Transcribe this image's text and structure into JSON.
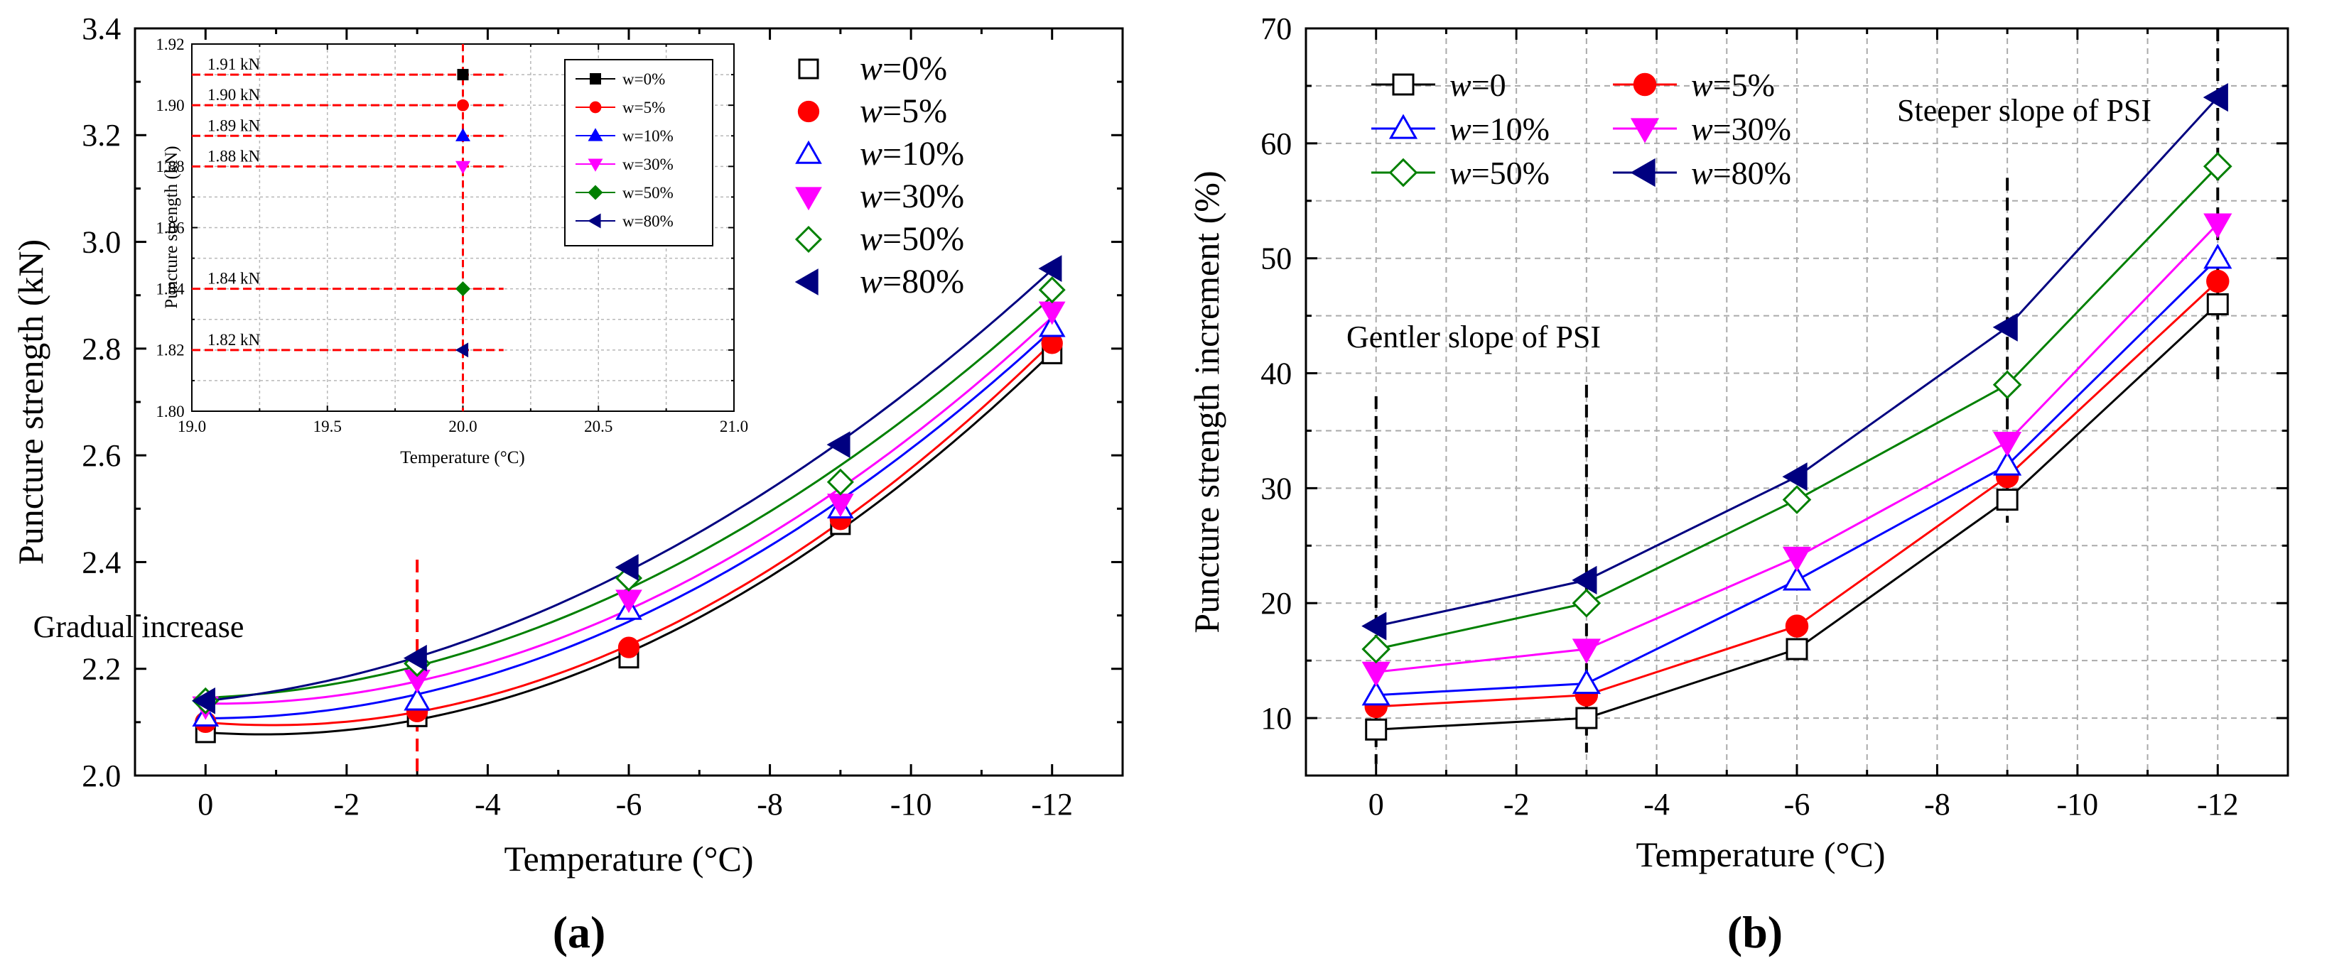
{
  "colors": {
    "w0": "#000000",
    "w5": "#ff0000",
    "w10": "#0000ff",
    "w30": "#ff00ff",
    "w50": "#008000",
    "w80": "#000080",
    "guide_a": "#ff0000",
    "guide_b": "#000000"
  },
  "chart_data": [
    {
      "id": "a",
      "type": "scatter",
      "panel_label_prefix": "(",
      "panel_letter": "a",
      "panel_label_suffix": ")",
      "xlabel": "Temperature (°C)",
      "ylabel": "Puncture strength (kN)",
      "x": [
        0,
        -3,
        -6,
        -9,
        -12
      ],
      "xlim": [
        1,
        -13
      ],
      "ylim": [
        2.0,
        3.4
      ],
      "xticks": [
        0,
        -2,
        -4,
        -6,
        -8,
        -10,
        -12
      ],
      "xtick_labels": [
        "0",
        "-2",
        "-4",
        "-6",
        "-8",
        "-10",
        "-12"
      ],
      "yticks": [
        2.0,
        2.2,
        2.4,
        2.6,
        2.8,
        3.0,
        3.2,
        3.4
      ],
      "ytick_labels": [
        "2.0",
        "2.2",
        "2.4",
        "2.6",
        "2.8",
        "3.0",
        "3.2",
        "3.4"
      ],
      "grid": false,
      "fit": "quadratic",
      "annotation": "Gradual increase",
      "guide_x": -3,
      "series": [
        {
          "key": "w0",
          "prefix": "w",
          "suffix": "=0%",
          "marker": "square-open",
          "values": [
            2.08,
            2.11,
            2.22,
            2.47,
            2.79
          ]
        },
        {
          "key": "w5",
          "prefix": "w",
          "suffix": "=5%",
          "marker": "circle-filled",
          "values": [
            2.1,
            2.12,
            2.24,
            2.48,
            2.81
          ]
        },
        {
          "key": "w10",
          "prefix": "w",
          "suffix": "=10%",
          "marker": "tri-up-open",
          "values": [
            2.11,
            2.14,
            2.31,
            2.5,
            2.84
          ]
        },
        {
          "key": "w30",
          "prefix": "w",
          "suffix": "=30%",
          "marker": "tri-down-filled",
          "values": [
            2.13,
            2.18,
            2.33,
            2.51,
            2.87
          ]
        },
        {
          "key": "w50",
          "prefix": "w",
          "suffix": "=50%",
          "marker": "diamond-open",
          "values": [
            2.14,
            2.21,
            2.37,
            2.55,
            2.91
          ]
        },
        {
          "key": "w80",
          "prefix": "w",
          "suffix": "=80%",
          "marker": "tri-left-filled",
          "values": [
            2.14,
            2.22,
            2.39,
            2.62,
            2.95
          ]
        }
      ],
      "legend_position": "top-right"
    },
    {
      "id": "a_inset",
      "type": "scatter",
      "xlabel": "Temperature (°C)",
      "ylabel": "Puncture strength (kN)",
      "xlim": [
        19.0,
        21.0
      ],
      "ylim": [
        1.8,
        1.92
      ],
      "xticks": [
        19.0,
        19.5,
        20.0,
        20.5,
        21.0
      ],
      "xtick_labels": [
        "19.0",
        "19.5",
        "20.0",
        "20.5",
        "21.0"
      ],
      "yticks": [
        1.8,
        1.82,
        1.84,
        1.86,
        1.88,
        1.9,
        1.92
      ],
      "ytick_labels": [
        "1.80",
        "1.82",
        "1.84",
        "1.86",
        "1.88",
        "1.90",
        "1.92"
      ],
      "grid": true,
      "guide_x": 20.0,
      "series": [
        {
          "key": "w0",
          "label": "w=0%",
          "marker": "square-filled",
          "x": 20.0,
          "y": 1.91,
          "value_label": "1.91 kN"
        },
        {
          "key": "w5",
          "label": "w=5%",
          "marker": "circle-filled",
          "x": 20.0,
          "y": 1.9,
          "value_label": "1.90 kN"
        },
        {
          "key": "w10",
          "label": "w=10%",
          "marker": "tri-up-filled",
          "x": 20.0,
          "y": 1.89,
          "value_label": "1.89 kN"
        },
        {
          "key": "w30",
          "label": "w=30%",
          "marker": "tri-down-filled",
          "x": 20.0,
          "y": 1.88,
          "value_label": "1.88 kN"
        },
        {
          "key": "w50",
          "label": "w=50%",
          "marker": "diamond-filled",
          "x": 20.0,
          "y": 1.84,
          "value_label": "1.84 kN"
        },
        {
          "key": "w80",
          "label": "w=80%",
          "marker": "tri-left-filled",
          "x": 20.0,
          "y": 1.82,
          "value_label": "1.82 kN"
        }
      ],
      "legend_position": "top-right"
    },
    {
      "id": "b",
      "type": "line",
      "panel_label_prefix": "(",
      "panel_letter": "b",
      "panel_label_suffix": ")",
      "xlabel": "Temperature (°C)",
      "ylabel": "Puncture strength increment (%)",
      "x": [
        0,
        -3,
        -6,
        -9,
        -12
      ],
      "xlim": [
        1,
        -13
      ],
      "ylim": [
        5,
        70
      ],
      "xticks": [
        0,
        -2,
        -4,
        -6,
        -8,
        -10,
        -12
      ],
      "xtick_labels": [
        "0",
        "-2",
        "-4",
        "-6",
        "-8",
        "-10",
        "-12"
      ],
      "yticks": [
        10,
        20,
        30,
        40,
        50,
        60,
        70
      ],
      "ytick_labels": [
        "10",
        "20",
        "30",
        "40",
        "50",
        "60",
        "70"
      ],
      "grid": true,
      "annotations": [
        "Gentler slope of PSI",
        "Steeper slope of PSI"
      ],
      "guides": [
        {
          "x": 0,
          "y0": 6,
          "y1": 38
        },
        {
          "x": -3,
          "y0": 7,
          "y1": 39
        },
        {
          "x": -9,
          "y0": 27,
          "y1": 57
        },
        {
          "x": -12,
          "y0": 39,
          "y1": 70
        }
      ],
      "series": [
        {
          "key": "w0",
          "prefix": "w",
          "suffix": "=0",
          "marker": "square-open",
          "values": [
            9,
            10,
            16,
            29,
            46
          ]
        },
        {
          "key": "w5",
          "prefix": "w",
          "suffix": "=5%",
          "marker": "circle-filled",
          "values": [
            11,
            12,
            18,
            31,
            48
          ]
        },
        {
          "key": "w10",
          "prefix": "w",
          "suffix": "=10%",
          "marker": "tri-up-open",
          "values": [
            12,
            13,
            22,
            32,
            50
          ]
        },
        {
          "key": "w30",
          "prefix": "w",
          "suffix": "=30%",
          "marker": "tri-down-filled",
          "values": [
            14,
            16,
            24,
            34,
            53
          ]
        },
        {
          "key": "w50",
          "prefix": "w",
          "suffix": "=50%",
          "marker": "diamond-open",
          "values": [
            16,
            20,
            29,
            39,
            58
          ]
        },
        {
          "key": "w80",
          "prefix": "w",
          "suffix": "=80%",
          "marker": "tri-left-filled",
          "values": [
            18,
            22,
            31,
            44,
            64
          ]
        }
      ],
      "legend_position": "top-left"
    }
  ]
}
